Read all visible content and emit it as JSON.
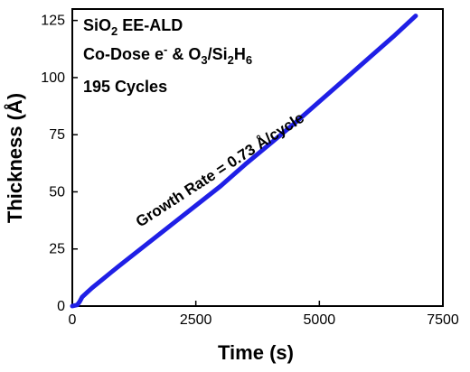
{
  "chart_data": {
    "type": "line",
    "title": "",
    "xlabel": "Time (s)",
    "ylabel": "Thickness (Å)",
    "xlim": [
      0,
      7500
    ],
    "ylim": [
      0,
      130
    ],
    "x_ticks": [
      0,
      2500,
      5000,
      7500
    ],
    "y_ticks": [
      0,
      25,
      50,
      75,
      100,
      125
    ],
    "x_tick_labels": [
      "0",
      "2500",
      "5000",
      "7500"
    ],
    "y_tick_labels": [
      "0",
      "25",
      "50",
      "75",
      "100",
      "125"
    ],
    "grid": false,
    "series": [
      {
        "color": "#1f1fe6",
        "x": [
          0,
          100,
          150,
          200,
          300,
          400,
          600,
          800,
          1000,
          1500,
          2000,
          2500,
          3000,
          3500,
          4000,
          4500,
          5000,
          5500,
          6000,
          6500,
          6950
        ],
        "y": [
          0,
          0.5,
          2,
          4,
          6,
          8,
          11.5,
          15,
          18.5,
          27,
          35.5,
          44,
          52.5,
          62,
          71,
          80,
          89.5,
          99,
          108.5,
          118,
          127
        ]
      }
    ],
    "annotations": {
      "line1_main": "SiO",
      "line1_sub": "2",
      "line1_rest": " EE-ALD",
      "line2_a": "Co-Dose e",
      "line2_sup": "-",
      "line2_b": " & O",
      "line2_sub1": "3",
      "line2_c": "/Si",
      "line2_sub2": "2",
      "line2_d": "H",
      "line2_sub3": "6",
      "line3": "195 Cycles",
      "growth_rate": "Growth Rate = 0.73 Å/cycle"
    }
  }
}
